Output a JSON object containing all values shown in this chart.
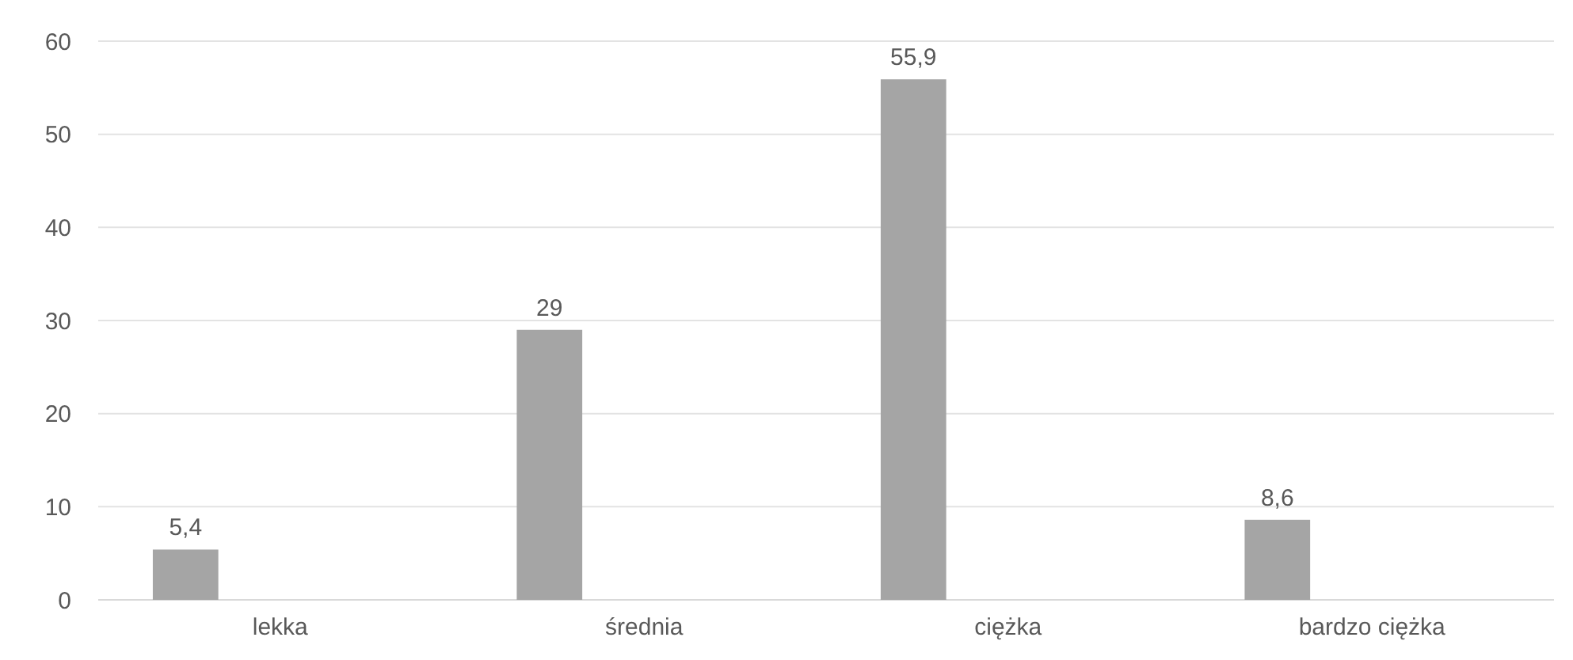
{
  "chart_data": {
    "type": "bar",
    "categories": [
      "lekka",
      "średnia",
      "ciężka",
      "bardzo ciężka"
    ],
    "values": [
      5.4,
      29,
      55.9,
      8.6
    ],
    "color": "#a5a5a5",
    "value_labels": [
      "5,4",
      "29",
      "55,9",
      "8,6"
    ],
    "ylim": [
      0,
      60
    ],
    "yticks": [
      0,
      10,
      20,
      30,
      40,
      50,
      60
    ],
    "grid": "y"
  }
}
